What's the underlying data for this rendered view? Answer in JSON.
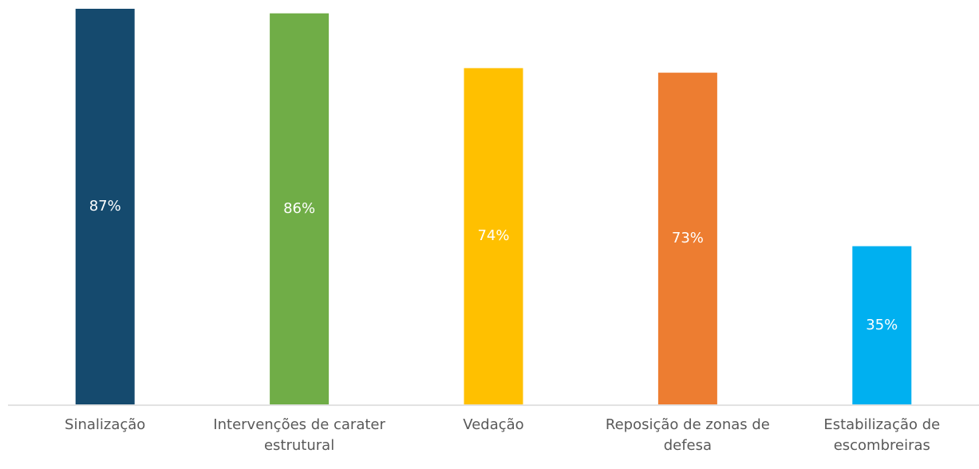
{
  "chart_data": {
    "type": "bar",
    "categories": [
      "Sinalização",
      "Intervenções de carater estrutural",
      "Vedação",
      "Reposição de zonas de defesa",
      "Estabilização de escombreiras"
    ],
    "values": [
      87,
      86,
      74,
      73,
      35
    ],
    "value_labels": [
      "87%",
      "86%",
      "74%",
      "73%",
      "35%"
    ],
    "colors": [
      "#154a6e",
      "#70ad47",
      "#ffc000",
      "#ed7d31",
      "#00b0f0"
    ]
  }
}
